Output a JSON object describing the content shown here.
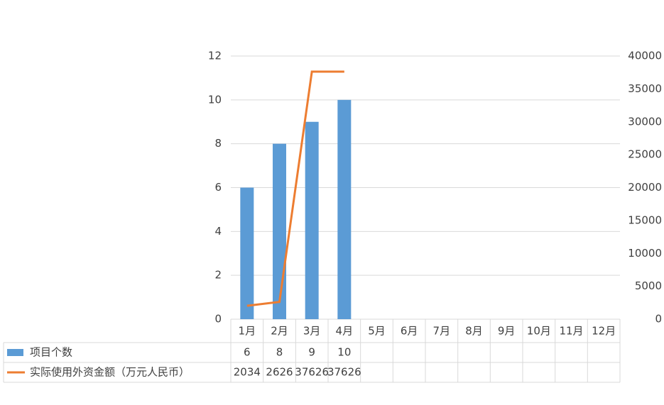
{
  "chart_data": {
    "type": "bar",
    "categories": [
      "1月",
      "2月",
      "3月",
      "4月",
      "5月",
      "6月",
      "7月",
      "8月",
      "9月",
      "10月",
      "11月",
      "12月"
    ],
    "series": [
      {
        "name": "项目个数",
        "type": "bar",
        "color": "#5b9bd5",
        "values": [
          6,
          8,
          9,
          10,
          null,
          null,
          null,
          null,
          null,
          null,
          null,
          null
        ]
      },
      {
        "name": "实际使用外资金额（万元人民币）",
        "type": "line",
        "axis": "y2",
        "color": "#ed7d31",
        "values": [
          2034,
          2626,
          37626,
          37626,
          null,
          null,
          null,
          null,
          null,
          null,
          null,
          null
        ]
      }
    ],
    "ylim": [
      0,
      12
    ],
    "yticks": [
      0,
      2,
      4,
      6,
      8,
      10,
      12
    ],
    "y2lim": [
      0,
      40000
    ],
    "y2ticks": [
      0,
      5000,
      10000,
      15000,
      20000,
      25000,
      30000,
      35000,
      40000
    ],
    "grid": true,
    "data_table": true
  }
}
